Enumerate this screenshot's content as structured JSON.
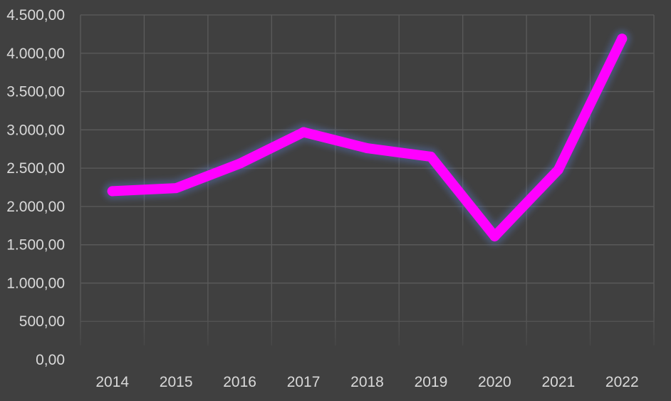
{
  "chart_data": {
    "type": "line",
    "title": "",
    "xlabel": "",
    "ylabel": "",
    "categories": [
      "2014",
      "2015",
      "2016",
      "2017",
      "2018",
      "2019",
      "2020",
      "2021",
      "2022"
    ],
    "series": [
      {
        "values": [
          2200,
          2240,
          2560,
          2970,
          2760,
          2650,
          1610,
          2480,
          4190
        ],
        "color": "#ff00ff"
      }
    ],
    "ylim": [
      0,
      4500
    ],
    "yticks": [
      0,
      500,
      1000,
      1500,
      2000,
      2500,
      3000,
      3500,
      4000,
      4500
    ],
    "ytick_labels": [
      "0,00",
      "500,00",
      "1.000,00",
      "1.500,00",
      "2.000,00",
      "2.500,00",
      "3.000,00",
      "3.500,00",
      "4.000,00",
      "4.500,00"
    ],
    "grid": true,
    "legend": "none",
    "background_color": "#404040",
    "grid_color": "#5b5b5b",
    "label_color": "#d9d9d9"
  }
}
